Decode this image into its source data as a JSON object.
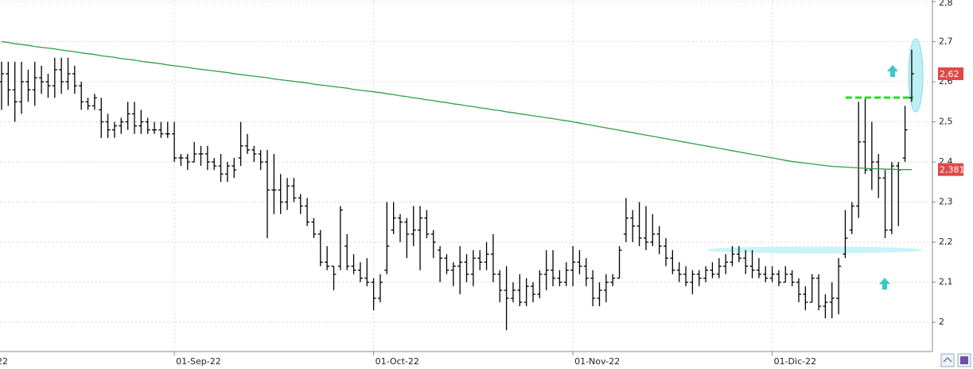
{
  "chart_data": {
    "type": "ohlc",
    "ylim": [
      1.927,
      2.804
    ],
    "yticks": [
      {
        "value": 2,
        "label": "2"
      },
      {
        "value": 2.1,
        "label": "2,1"
      },
      {
        "value": 2.2,
        "label": "2,2"
      },
      {
        "value": 2.3,
        "label": "2,3"
      },
      {
        "value": 2.4,
        "label": "2,4"
      },
      {
        "value": 2.5,
        "label": "2,5"
      },
      {
        "value": 2.6,
        "label": "2,6"
      },
      {
        "value": 2.7,
        "label": "2,7"
      },
      {
        "value": 2.8,
        "label": "2,8"
      }
    ],
    "grid": true,
    "color": "#000000",
    "categories": [
      "22",
      null,
      null,
      null,
      null,
      null,
      null,
      null,
      null,
      null,
      null,
      null,
      null,
      null,
      null,
      null,
      null,
      null,
      null,
      null,
      null,
      null,
      null,
      null,
      null,
      null,
      "01-Sep-22",
      null,
      null,
      null,
      null,
      null,
      null,
      null,
      null,
      null,
      null,
      null,
      null,
      null,
      null,
      null,
      null,
      null,
      null,
      null,
      null,
      null,
      null,
      null,
      null,
      null,
      null,
      null,
      null,
      null,
      "01-Oct-22",
      null,
      null,
      null,
      null,
      null,
      null,
      null,
      null,
      null,
      null,
      null,
      null,
      null,
      null,
      null,
      null,
      null,
      null,
      null,
      null,
      null,
      null,
      null,
      null,
      null,
      null,
      null,
      null,
      null,
      "01-Nov-22",
      null,
      null,
      null,
      null,
      null,
      null,
      null,
      null,
      null,
      null,
      null,
      null,
      null,
      null,
      null,
      null,
      null,
      null,
      null,
      null,
      null,
      null,
      null,
      null,
      null,
      null,
      null,
      null,
      null,
      "01-Dic-22",
      null,
      null,
      null,
      null,
      null,
      null,
      null,
      null,
      null,
      null,
      null,
      null,
      null,
      null,
      null,
      null,
      null,
      null,
      null,
      null,
      null
    ],
    "ohlc": [
      [
        2.6,
        2.65,
        2.53,
        2.62
      ],
      [
        2.62,
        2.65,
        2.54,
        2.58
      ],
      [
        2.58,
        2.65,
        2.5,
        2.55
      ],
      [
        2.55,
        2.65,
        2.52,
        2.6
      ],
      [
        2.6,
        2.63,
        2.55,
        2.58
      ],
      [
        2.58,
        2.65,
        2.54,
        2.61
      ],
      [
        2.61,
        2.64,
        2.57,
        2.6
      ],
      [
        2.6,
        2.62,
        2.56,
        2.59
      ],
      [
        2.59,
        2.66,
        2.56,
        2.63
      ],
      [
        2.63,
        2.66,
        2.57,
        2.6
      ],
      [
        2.6,
        2.66,
        2.58,
        2.62
      ],
      [
        2.62,
        2.64,
        2.57,
        2.59
      ],
      [
        2.59,
        2.6,
        2.53,
        2.55
      ],
      [
        2.55,
        2.56,
        2.53,
        2.54
      ],
      [
        2.54,
        2.57,
        2.53,
        2.56
      ],
      [
        2.53,
        2.56,
        2.46,
        2.5
      ],
      [
        2.5,
        2.52,
        2.46,
        2.48
      ],
      [
        2.48,
        2.5,
        2.46,
        2.49
      ],
      [
        2.49,
        2.51,
        2.47,
        2.5
      ],
      [
        2.5,
        2.55,
        2.48,
        2.52
      ],
      [
        2.52,
        2.55,
        2.47,
        2.49
      ],
      [
        2.49,
        2.53,
        2.47,
        2.5
      ],
      [
        2.5,
        2.51,
        2.47,
        2.48
      ],
      [
        2.48,
        2.5,
        2.47,
        2.48
      ],
      [
        2.48,
        2.5,
        2.46,
        2.47
      ],
      [
        2.47,
        2.5,
        2.46,
        2.47
      ],
      [
        2.47,
        2.5,
        2.4,
        2.41
      ],
      [
        2.41,
        2.42,
        2.39,
        2.41
      ],
      [
        2.41,
        2.42,
        2.38,
        2.4
      ],
      [
        2.4,
        2.45,
        2.4,
        2.42
      ],
      [
        2.42,
        2.44,
        2.39,
        2.42
      ],
      [
        2.42,
        2.44,
        2.38,
        2.4
      ],
      [
        2.4,
        2.41,
        2.38,
        2.39
      ],
      [
        2.39,
        2.42,
        2.35,
        2.37
      ],
      [
        2.37,
        2.4,
        2.35,
        2.39
      ],
      [
        2.39,
        2.41,
        2.36,
        2.38
      ],
      [
        2.41,
        2.5,
        2.39,
        2.44
      ],
      [
        2.44,
        2.47,
        2.42,
        2.43
      ],
      [
        2.43,
        2.44,
        2.4,
        2.42
      ],
      [
        2.42,
        2.43,
        2.38,
        2.4
      ],
      [
        2.4,
        2.43,
        2.21,
        2.33
      ],
      [
        2.33,
        2.42,
        2.27,
        2.33
      ],
      [
        2.33,
        2.37,
        2.27,
        2.3
      ],
      [
        2.3,
        2.36,
        2.28,
        2.34
      ],
      [
        2.34,
        2.36,
        2.3,
        2.31
      ],
      [
        2.31,
        2.32,
        2.27,
        2.29
      ],
      [
        2.29,
        2.31,
        2.24,
        2.25
      ],
      [
        2.25,
        2.26,
        2.21,
        2.22
      ],
      [
        2.22,
        2.23,
        2.14,
        2.15
      ],
      [
        2.15,
        2.19,
        2.13,
        2.14
      ],
      [
        2.14,
        2.14,
        2.08,
        2.12
      ],
      [
        2.14,
        2.29,
        2.13,
        2.28
      ],
      [
        2.19,
        2.22,
        2.13,
        2.14
      ],
      [
        2.14,
        2.17,
        2.12,
        2.13
      ],
      [
        2.13,
        2.15,
        2.1,
        2.11
      ],
      [
        2.11,
        2.16,
        2.09,
        2.1
      ],
      [
        2.1,
        2.11,
        2.03,
        2.06
      ],
      [
        2.06,
        2.12,
        2.05,
        2.1
      ],
      [
        2.13,
        2.3,
        2.12,
        2.19
      ],
      [
        2.23,
        2.3,
        2.22,
        2.26
      ],
      [
        2.26,
        2.27,
        2.2,
        2.25
      ],
      [
        2.25,
        2.26,
        2.16,
        2.22
      ],
      [
        2.22,
        2.29,
        2.19,
        2.23
      ],
      [
        2.23,
        2.29,
        2.13,
        2.26
      ],
      [
        2.26,
        2.28,
        2.21,
        2.22
      ],
      [
        2.22,
        2.23,
        2.16,
        2.2
      ],
      [
        2.18,
        2.19,
        2.1,
        2.16
      ],
      [
        2.16,
        2.17,
        2.12,
        2.13
      ],
      [
        2.13,
        2.15,
        2.09,
        2.14
      ],
      [
        2.14,
        2.19,
        2.07,
        2.15
      ],
      [
        2.15,
        2.17,
        2.1,
        2.12
      ],
      [
        2.12,
        2.18,
        2.09,
        2.16
      ],
      [
        2.16,
        2.18,
        2.13,
        2.15
      ],
      [
        2.15,
        2.2,
        2.13,
        2.17
      ],
      [
        2.17,
        2.22,
        2.1,
        2.12
      ],
      [
        2.12,
        2.13,
        2.05,
        2.08
      ],
      [
        2.08,
        2.14,
        1.98,
        2.06
      ],
      [
        2.06,
        2.1,
        2.05,
        2.08
      ],
      [
        2.08,
        2.12,
        2.04,
        2.05
      ],
      [
        2.05,
        2.11,
        2.04,
        2.09
      ],
      [
        2.09,
        2.1,
        2.05,
        2.07
      ],
      [
        2.07,
        2.13,
        2.06,
        2.12
      ],
      [
        2.12,
        2.18,
        2.08,
        2.13
      ],
      [
        2.13,
        2.18,
        2.09,
        2.11
      ],
      [
        2.11,
        2.13,
        2.09,
        2.1
      ],
      [
        2.1,
        2.15,
        2.09,
        2.13
      ],
      [
        2.13,
        2.19,
        2.09,
        2.15
      ],
      [
        2.15,
        2.18,
        2.12,
        2.14
      ],
      [
        2.14,
        2.16,
        2.09,
        2.11
      ],
      [
        2.11,
        2.13,
        2.04,
        2.06
      ],
      [
        2.06,
        2.1,
        2.04,
        2.08
      ],
      [
        2.08,
        2.12,
        2.05,
        2.1
      ],
      [
        2.1,
        2.12,
        2.09,
        2.11
      ],
      [
        2.11,
        2.19,
        2.11,
        2.18
      ],
      [
        2.22,
        2.31,
        2.2,
        2.26
      ],
      [
        2.26,
        2.28,
        2.2,
        2.24
      ],
      [
        2.24,
        2.3,
        2.19,
        2.21
      ],
      [
        2.21,
        2.29,
        2.18,
        2.2
      ],
      [
        2.2,
        2.27,
        2.19,
        2.22
      ],
      [
        2.22,
        2.24,
        2.17,
        2.19
      ],
      [
        2.19,
        2.21,
        2.14,
        2.16
      ],
      [
        2.16,
        2.18,
        2.12,
        2.13
      ],
      [
        2.13,
        2.15,
        2.1,
        2.12
      ],
      [
        2.12,
        2.14,
        2.09,
        2.1
      ],
      [
        2.1,
        2.13,
        2.07,
        2.12
      ],
      [
        2.12,
        2.13,
        2.09,
        2.11
      ],
      [
        2.11,
        2.14,
        2.1,
        2.13
      ],
      [
        2.13,
        2.15,
        2.11,
        2.12
      ],
      [
        2.12,
        2.16,
        2.11,
        2.14
      ],
      [
        2.14,
        2.17,
        2.12,
        2.15
      ],
      [
        2.15,
        2.19,
        2.14,
        2.17
      ],
      [
        2.17,
        2.19,
        2.15,
        2.16
      ],
      [
        2.16,
        2.18,
        2.12,
        2.14
      ],
      [
        2.14,
        2.18,
        2.11,
        2.13
      ],
      [
        2.13,
        2.16,
        2.11,
        2.12
      ],
      [
        2.12,
        2.14,
        2.1,
        2.11
      ],
      [
        2.11,
        2.14,
        2.1,
        2.12
      ],
      [
        2.12,
        2.13,
        2.09,
        2.1
      ],
      [
        2.1,
        2.14,
        2.1,
        2.12
      ],
      [
        2.12,
        2.13,
        2.09,
        2.1
      ],
      [
        2.1,
        2.11,
        2.05,
        2.07
      ],
      [
        2.07,
        2.09,
        2.03,
        2.05
      ],
      [
        2.05,
        2.12,
        2.05,
        2.11
      ],
      [
        2.11,
        2.12,
        2.03,
        2.04
      ],
      [
        2.04,
        2.07,
        2.01,
        2.05
      ],
      [
        2.05,
        2.1,
        2.01,
        2.06
      ],
      [
        2.06,
        2.16,
        2.02,
        2.14
      ],
      [
        2.17,
        2.28,
        2.16,
        2.21
      ],
      [
        2.23,
        2.3,
        2.22,
        2.29
      ],
      [
        2.29,
        2.55,
        2.26,
        2.45
      ],
      [
        2.45,
        2.56,
        2.37,
        2.38
      ],
      [
        2.38,
        2.5,
        2.33,
        2.4
      ],
      [
        2.4,
        2.42,
        2.31,
        2.36
      ],
      [
        2.36,
        2.38,
        2.21,
        2.23
      ],
      [
        2.23,
        2.4,
        2.22,
        2.39
      ],
      [
        2.39,
        2.4,
        2.24,
        2.38
      ],
      [
        2.41,
        2.54,
        2.4,
        2.48
      ],
      [
        2.56,
        2.68,
        2.55,
        2.62
      ]
    ],
    "moving_average": {
      "color": "#2e9e46",
      "values": [
        2.7,
        2.698,
        2.695,
        2.693,
        2.691,
        2.688,
        2.686,
        2.684,
        2.682,
        2.679,
        2.677,
        2.675,
        2.672,
        2.67,
        2.668,
        2.665,
        2.663,
        2.661,
        2.658,
        2.656,
        2.654,
        2.651,
        2.649,
        2.647,
        2.645,
        2.642,
        2.64,
        2.638,
        2.636,
        2.633,
        2.631,
        2.629,
        2.627,
        2.625,
        2.623,
        2.62,
        2.618,
        2.616,
        2.614,
        2.612,
        2.61,
        2.607,
        2.605,
        2.603,
        2.601,
        2.599,
        2.597,
        2.594,
        2.592,
        2.59,
        2.588,
        2.586,
        2.584,
        2.581,
        2.579,
        2.577,
        2.575,
        2.573,
        2.57,
        2.568,
        2.565,
        2.563,
        2.56,
        2.558,
        2.555,
        2.553,
        2.55,
        2.548,
        2.545,
        2.543,
        2.54,
        2.538,
        2.535,
        2.533,
        2.53,
        2.528,
        2.525,
        2.523,
        2.52,
        2.518,
        2.515,
        2.513,
        2.51,
        2.508,
        2.505,
        2.503,
        2.5,
        2.497,
        2.494,
        2.491,
        2.488,
        2.485,
        2.482,
        2.479,
        2.476,
        2.473,
        2.47,
        2.467,
        2.464,
        2.461,
        2.458,
        2.455,
        2.452,
        2.449,
        2.446,
        2.443,
        2.44,
        2.437,
        2.434,
        2.431,
        2.428,
        2.425,
        2.422,
        2.419,
        2.416,
        2.413,
        2.41,
        2.407,
        2.404,
        2.401,
        2.399,
        2.397,
        2.395,
        2.393,
        2.391,
        2.389,
        2.388,
        2.387,
        2.386,
        2.385,
        2.384,
        2.383,
        2.383,
        2.382,
        2.382,
        2.381,
        2.381,
        2.381
      ]
    },
    "price_tags": [
      {
        "value": 2.62,
        "label": "2,62"
      },
      {
        "value": 2.381,
        "label": "2,381"
      }
    ],
    "price_tag_color": "#e04848"
  }
}
